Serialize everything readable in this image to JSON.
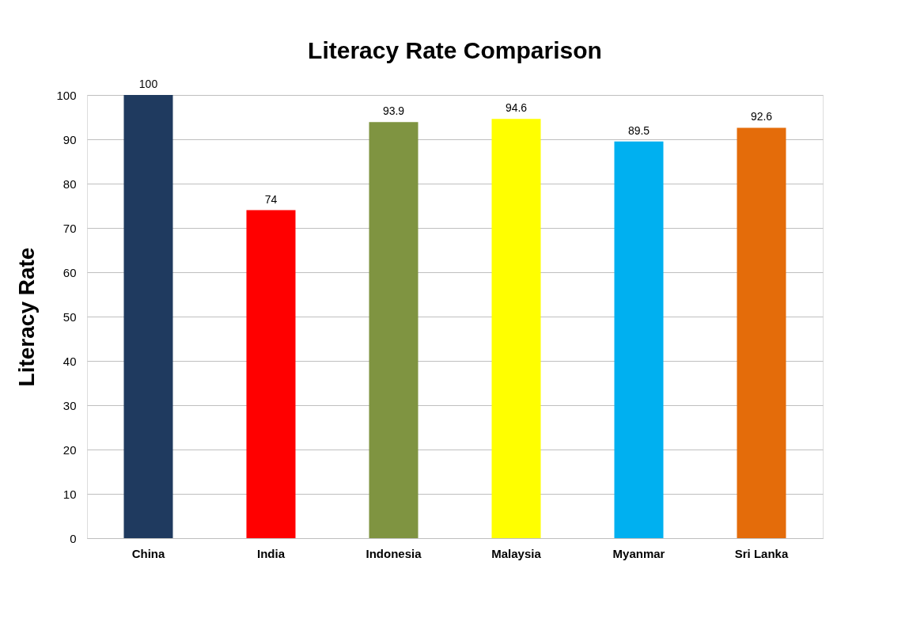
{
  "chart_data": {
    "type": "bar",
    "title": "Literacy Rate Comparison",
    "ylabel": "Literacy Rate",
    "categories": [
      "China",
      "India",
      "Indonesia",
      "Malaysia",
      "Myanmar",
      "Sri Lanka"
    ],
    "values": [
      100,
      74,
      93.9,
      94.6,
      89.5,
      92.6
    ],
    "colors": [
      "#1f3a5f",
      "#ff0000",
      "#7f9441",
      "#ffff00",
      "#00b0f0",
      "#e46c0a"
    ],
    "ylim": [
      0,
      100
    ],
    "yticks": [
      0,
      10,
      20,
      30,
      40,
      50,
      60,
      70,
      80,
      90,
      100
    ],
    "grid": "y",
    "data_labels": true
  }
}
